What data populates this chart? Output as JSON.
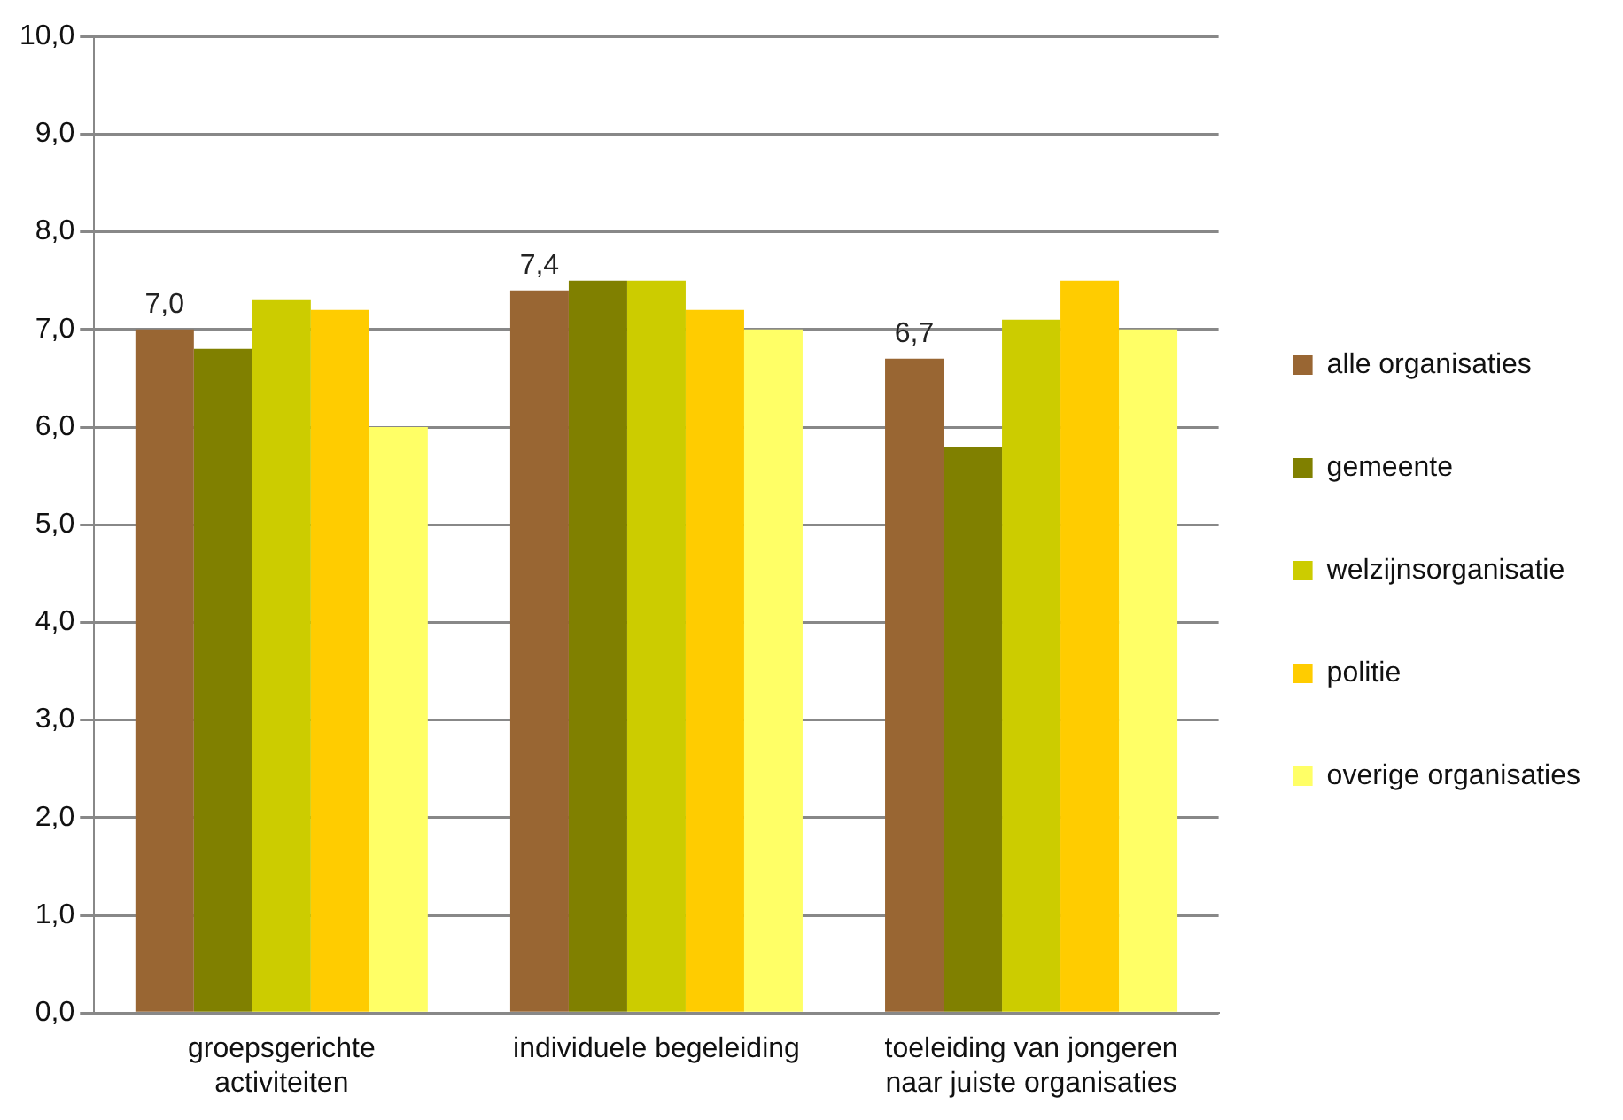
{
  "chart_data": {
    "type": "bar",
    "categories": [
      "groepsgerichte activiteiten",
      "individuele begeleiding",
      "toeleiding van jongeren naar juiste organisaties"
    ],
    "series": [
      {
        "name": "alle organisaties",
        "color": "#996633",
        "values": [
          7.0,
          7.4,
          6.7
        ],
        "value_labels": [
          "7,0",
          "7,4",
          "6,7"
        ]
      },
      {
        "name": "gemeente",
        "color": "#808000",
        "values": [
          6.8,
          7.5,
          5.8
        ]
      },
      {
        "name": "welzijnsorganisatie",
        "color": "#cccc00",
        "values": [
          7.3,
          7.5,
          7.1
        ]
      },
      {
        "name": "politie",
        "color": "#ffcc00",
        "values": [
          7.2,
          7.2,
          7.5
        ]
      },
      {
        "name": "overige organisaties",
        "color": "#ffff66",
        "values": [
          6.0,
          7.0,
          7.0
        ]
      }
    ],
    "ylim": [
      0,
      10
    ],
    "yticks": [
      {
        "value": 0,
        "label": "0,0"
      },
      {
        "value": 1,
        "label": "1,0"
      },
      {
        "value": 2,
        "label": "2,0"
      },
      {
        "value": 3,
        "label": "3,0"
      },
      {
        "value": 4,
        "label": "4,0"
      },
      {
        "value": 5,
        "label": "5,0"
      },
      {
        "value": 6,
        "label": "6,0"
      },
      {
        "value": 7,
        "label": "7,0"
      },
      {
        "value": 8,
        "label": "8,0"
      },
      {
        "value": 9,
        "label": "9,0"
      },
      {
        "value": 10,
        "label": "10,0"
      }
    ],
    "grid": "y",
    "legend": "right"
  }
}
